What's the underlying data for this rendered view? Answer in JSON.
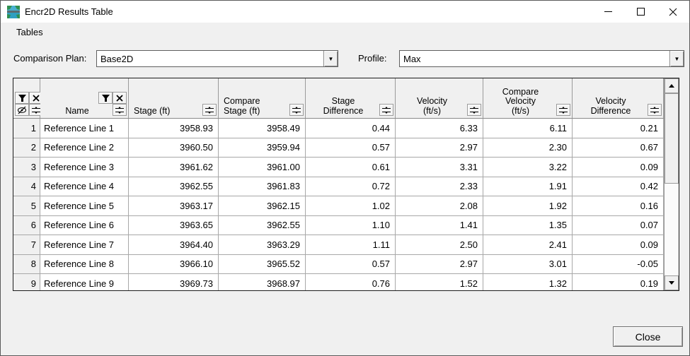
{
  "window": {
    "title": "Encr2D Results Table"
  },
  "menu": {
    "items": [
      {
        "label": "Tables"
      }
    ]
  },
  "controls": {
    "comparison_plan": {
      "label": "Comparison Plan:",
      "value": "Base2D"
    },
    "profile": {
      "label": "Profile:",
      "value": "Max"
    }
  },
  "icons": {
    "dropdown_arrow": "▼",
    "titlebar_buttons": [
      "minimize-icon",
      "maximize-icon",
      "close-icon"
    ],
    "header_corner_buttons": [
      "filter-funnel-icon",
      "clear-filter-x-icon",
      "hide-eye-slash-icon",
      "sort-sliders-icon"
    ]
  },
  "table": {
    "columns": [
      {
        "label": "Name",
        "filter_icons": true,
        "align": "ac"
      },
      {
        "label": "Stage (ft)",
        "align": "al"
      },
      {
        "label": "Compare\nStage (ft)",
        "align": "al"
      },
      {
        "label": "Stage\nDifference",
        "align": "ac"
      },
      {
        "label": "Velocity\n(ft/s)",
        "align": "ac"
      },
      {
        "label": "Compare\nVelocity\n(ft/s)",
        "align": "ac"
      },
      {
        "label": "Velocity\nDifference",
        "align": "ac"
      }
    ],
    "rows": [
      {
        "num": "1",
        "cells": [
          "Reference Line 1",
          "3958.93",
          "3958.49",
          "0.44",
          "6.33",
          "6.11",
          "0.21"
        ]
      },
      {
        "num": "2",
        "cells": [
          "Reference Line 2",
          "3960.50",
          "3959.94",
          "0.57",
          "2.97",
          "2.30",
          "0.67"
        ]
      },
      {
        "num": "3",
        "cells": [
          "Reference Line 3",
          "3961.62",
          "3961.00",
          "0.61",
          "3.31",
          "3.22",
          "0.09"
        ]
      },
      {
        "num": "4",
        "cells": [
          "Reference Line 4",
          "3962.55",
          "3961.83",
          "0.72",
          "2.33",
          "1.91",
          "0.42"
        ]
      },
      {
        "num": "5",
        "cells": [
          "Reference Line 5",
          "3963.17",
          "3962.15",
          "1.02",
          "2.08",
          "1.92",
          "0.16"
        ]
      },
      {
        "num": "6",
        "cells": [
          "Reference Line 6",
          "3963.65",
          "3962.55",
          "1.10",
          "1.41",
          "1.35",
          "0.07"
        ]
      },
      {
        "num": "7",
        "cells": [
          "Reference Line 7",
          "3964.40",
          "3963.29",
          "1.11",
          "2.50",
          "2.41",
          "0.09"
        ]
      },
      {
        "num": "8",
        "cells": [
          "Reference Line 8",
          "3966.10",
          "3965.52",
          "0.57",
          "2.97",
          "3.01",
          "-0.05"
        ]
      },
      {
        "num": "9",
        "cells": [
          "Reference Line 9",
          "3969.73",
          "3968.97",
          "0.76",
          "1.52",
          "1.32",
          "0.19"
        ]
      }
    ]
  },
  "footer": {
    "close_label": "Close"
  }
}
